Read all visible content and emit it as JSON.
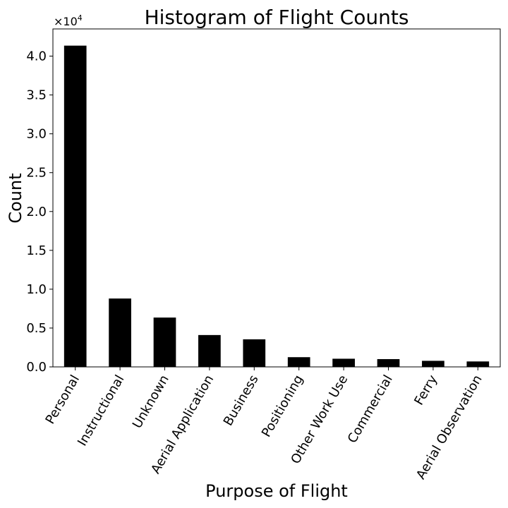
{
  "chart_data": {
    "type": "bar",
    "title": "Histogram of Flight Counts",
    "xlabel": "Purpose of Flight",
    "ylabel": "Count",
    "categories": [
      "Personal",
      "Instructional",
      "Unknown",
      "Aerial Application",
      "Business",
      "Positioning",
      "Other Work Use",
      "Commercial",
      "Ferry",
      "Aerial Observation"
    ],
    "values": [
      41350,
      8800,
      6350,
      4100,
      3550,
      1250,
      1050,
      1000,
      780,
      700
    ],
    "ylim": [
      0,
      43500
    ],
    "yticks": [
      0,
      5000,
      10000,
      15000,
      20000,
      25000,
      30000,
      35000,
      40000
    ],
    "ytick_labels": [
      "0.0",
      "0.5",
      "1.0",
      "1.5",
      "2.0",
      "2.5",
      "3.0",
      "3.5",
      "4.0"
    ],
    "y_multiplier_base": "×10",
    "y_multiplier_exp": "4",
    "bar_color": "#000000",
    "grid": false,
    "legend": "none"
  }
}
